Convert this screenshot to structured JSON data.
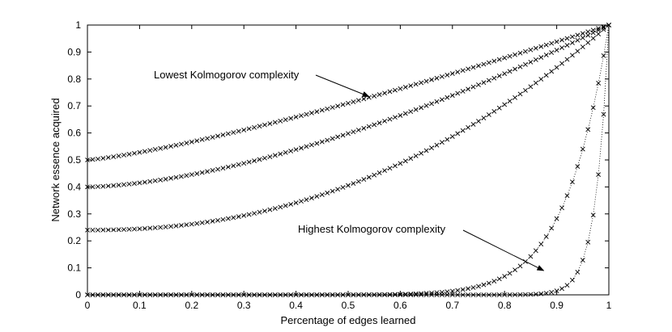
{
  "chart_data": {
    "type": "line",
    "title": "",
    "xlabel": "Percentage of edges learned",
    "ylabel": "Network essence acquired",
    "xlim": [
      0,
      1
    ],
    "ylim": [
      0,
      1
    ],
    "xticks": [
      "0",
      "0.1",
      "0.2",
      "0.3",
      "0.4",
      "0.5",
      "0.6",
      "0.7",
      "0.8",
      "0.9",
      "1"
    ],
    "yticks": [
      "0",
      "0.1",
      "0.2",
      "0.3",
      "0.4",
      "0.5",
      "0.6",
      "0.7",
      "0.8",
      "0.9",
      "1"
    ],
    "grid": false,
    "marker": "x",
    "series": [
      {
        "name": "series-1",
        "y0": 0.5,
        "exponent": 1.25,
        "points": 100
      },
      {
        "name": "series-2",
        "y0": 0.4,
        "exponent": 1.6,
        "points": 100
      },
      {
        "name": "series-3",
        "y0": 0.24,
        "exponent": 2.2,
        "points": 100
      },
      {
        "name": "series-4",
        "y0": 0.0,
        "exponent": 12,
        "points": 100
      },
      {
        "name": "series-5",
        "y0": 0.0,
        "exponent": 40,
        "points": 100
      }
    ],
    "annotations": [
      {
        "text": "Lowest Kolmogorov complexity",
        "arrow_to": [
          0.54,
          0.735
        ]
      },
      {
        "text": "Highest Kolmogorov complexity",
        "arrow_to": [
          0.875,
          0.09
        ]
      }
    ]
  }
}
